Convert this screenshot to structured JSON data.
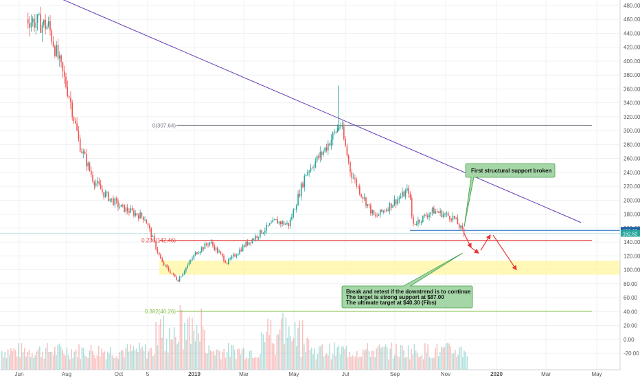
{
  "chart_data": {
    "type": "candlestick",
    "title": "",
    "xlabel": "",
    "ylabel": "",
    "ylim": [
      -40,
      490
    ],
    "y_ticks": [
      "480.00",
      "460.00",
      "440.00",
      "420.00",
      "400.00",
      "380.00",
      "360.00",
      "340.00",
      "320.00",
      "300.00",
      "280.00",
      "260.00",
      "240.00",
      "220.00",
      "200.00",
      "180.00",
      "160.00",
      "140.00",
      "120.00",
      "100.00",
      "80.00",
      "60.00",
      "40.00",
      "20.00",
      "0.00",
      "-20.00"
    ],
    "x_ticks": [
      "Jun",
      "Aug",
      "Oct",
      "5",
      "2019",
      "Mar",
      "May",
      "Jul",
      "Sep",
      "Nov",
      "2020",
      "Mar",
      "May"
    ],
    "price_keypoints": [
      [
        "Jun",
        460
      ],
      [
        "Jul",
        450
      ],
      [
        "Aug",
        350
      ],
      [
        "Aug-late",
        280
      ],
      [
        "Sep",
        230
      ],
      [
        "Sep-late",
        210
      ],
      [
        "Oct",
        190
      ],
      [
        "Nov",
        175
      ],
      [
        "Dec",
        110
      ],
      [
        "Dec-mid",
        85
      ],
      [
        "2019",
        125
      ],
      [
        "Jan",
        140
      ],
      [
        "Feb",
        110
      ],
      [
        "Mar",
        135
      ],
      [
        "Apr",
        170
      ],
      [
        "Apr-late",
        165
      ],
      [
        "May",
        240
      ],
      [
        "Jun",
        270
      ],
      [
        "Jun-late",
        310
      ],
      [
        "Jul",
        240
      ],
      [
        "Aug",
        210
      ],
      [
        "Aug-late",
        175
      ],
      [
        "Sep",
        215
      ],
      [
        "Sep-late",
        165
      ],
      [
        "Oct",
        185
      ],
      [
        "Nov",
        175
      ],
      [
        "Nov-late",
        150
      ]
    ],
    "horizontal_levels": [
      {
        "name": "0(307.64)",
        "value": 307.64,
        "color": "#787b86"
      },
      {
        "name": "0.236(142.46)",
        "value": 142.46,
        "color": "#e53935"
      },
      {
        "name": "0.382(40.26)",
        "value": 40.26,
        "color": "#8bc34a"
      },
      {
        "name": "",
        "value": 156.63,
        "color": "#1565c0"
      }
    ],
    "support_zone": {
      "from": 93,
      "to": 113,
      "color": "#fff59d"
    },
    "trendline": {
      "from": [
        "Jul",
        490
      ],
      "to": [
        "2020",
        168
      ],
      "color": "#673ab7"
    },
    "price_tags": [
      {
        "label": "156.63",
        "value": 156.63,
        "color": "#1e5fa8"
      },
      {
        "label": "152.52",
        "value": 152.52,
        "color": "#26a69a"
      }
    ],
    "annotations": [
      {
        "name": "callout-support-broken",
        "lines": [
          "First structural support broken"
        ],
        "color": "#a5d6a7"
      },
      {
        "name": "callout-break-retest",
        "lines": [
          "Break and retest if the downtrend is to continue",
          "The target is strong support at $87.00",
          "The ultimate target at $40.30 (Fibs)"
        ],
        "color": "#a5d6a7"
      }
    ],
    "volume_present": true,
    "grid": true,
    "legend": "none"
  },
  "colors": {
    "up": "#26a69a",
    "down": "#ef5350",
    "grid": "#eef0f3",
    "arrow": "#e53935"
  }
}
